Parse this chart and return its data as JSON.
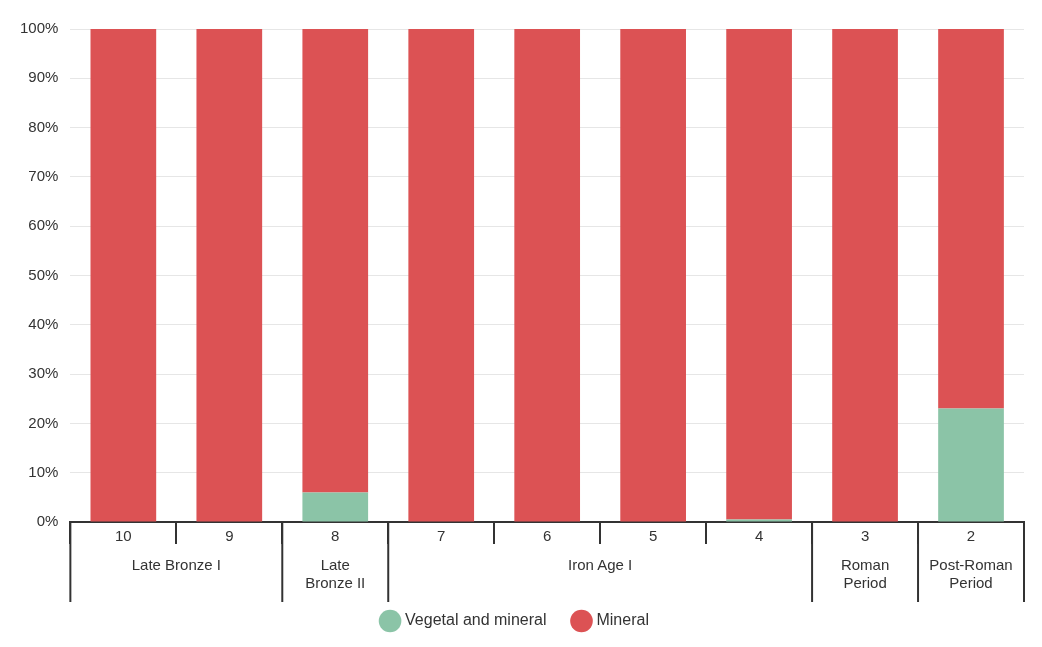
{
  "chart_data": {
    "type": "bar",
    "stacked": true,
    "categories": [
      "10",
      "9",
      "8",
      "7",
      "6",
      "5",
      "4",
      "3",
      "2"
    ],
    "series": [
      {
        "name": "Vegetal and mineral",
        "color": "#8bc4a7",
        "values": [
          0,
          0,
          6,
          0,
          0,
          0,
          0.5,
          0,
          23
        ]
      },
      {
        "name": "Mineral",
        "color": "#dc5254",
        "values": [
          100,
          100,
          94,
          100,
          100,
          100,
          99.5,
          100,
          77
        ]
      }
    ],
    "ylim": [
      0,
      100
    ],
    "yticks": [
      {
        "value": 0,
        "label": "0%"
      },
      {
        "value": 10,
        "label": "10%"
      },
      {
        "value": 20,
        "label": "20%"
      },
      {
        "value": 30,
        "label": "30%"
      },
      {
        "value": 40,
        "label": "40%"
      },
      {
        "value": 50,
        "label": "50%"
      },
      {
        "value": 60,
        "label": "60%"
      },
      {
        "value": 70,
        "label": "70%"
      },
      {
        "value": 80,
        "label": "80%"
      },
      {
        "value": 90,
        "label": "90%"
      },
      {
        "value": 100,
        "label": "100%"
      }
    ],
    "grid": "y",
    "legend": "bottom",
    "annotations": [
      "Late Bronze I",
      "Late Bronze II",
      "Iron Age I",
      "Roman Period",
      "Post-Roman Period"
    ]
  }
}
